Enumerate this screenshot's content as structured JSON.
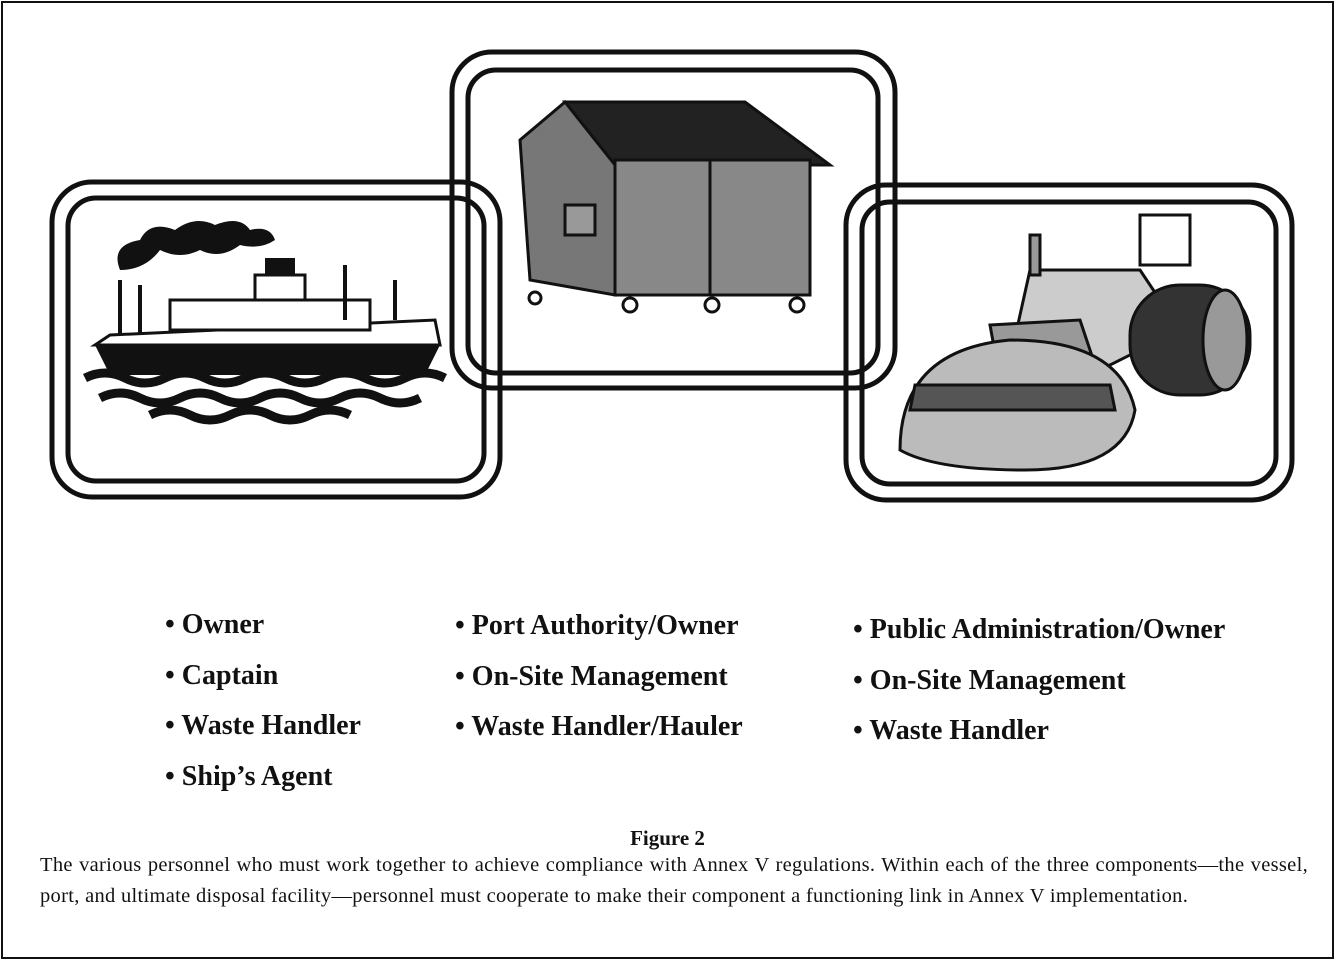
{
  "figure": {
    "columns": [
      {
        "items": [
          "• Owner",
          "• Captain",
          "• Waste Handler",
          "•  Ship’s Agent"
        ]
      },
      {
        "items": [
          "• Port Authority/Owner",
          "• On-Site Management",
          "• Waste Handler/Hauler"
        ]
      },
      {
        "items": [
          "• Public Administration/Owner",
          "• On-Site Management",
          "• Waste Handler"
        ]
      }
    ],
    "caption": {
      "label": "Figure 2",
      "text": "The various personnel who must work together to achieve compliance with Annex V regulations. Within each of the three components—the vessel, port, and ultimate disposal facility—personnel must cooperate to make their component a functioning link in Annex V implementation."
    }
  }
}
